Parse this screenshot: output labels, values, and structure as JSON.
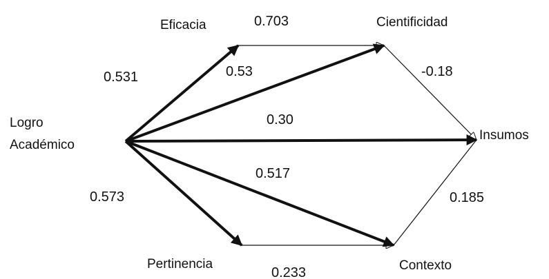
{
  "colors": {
    "background": "#ffffff",
    "ink": "#111111"
  },
  "nodes": {
    "logro": {
      "line1": "Logro",
      "line2": "Académico"
    },
    "eficacia": "Eficacia",
    "cientificidad": "Cientificidad",
    "insumos": "Insumos",
    "pertinencia": "Pertinencia",
    "contexto": "Contexto"
  },
  "paths": [
    {
      "from": "Logro Académico",
      "to": "Eficacia",
      "coefficient": "0.531"
    },
    {
      "from": "Logro Académico",
      "to": "Cientificidad",
      "coefficient": "0.53"
    },
    {
      "from": "Logro Académico",
      "to": "Insumos",
      "coefficient": "0.30"
    },
    {
      "from": "Logro Académico",
      "to": "Contexto",
      "coefficient": "0.517"
    },
    {
      "from": "Logro Académico",
      "to": "Pertinencia",
      "coefficient": "0.573"
    },
    {
      "from": "Eficacia",
      "to": "Cientificidad",
      "coefficient": "0.703"
    },
    {
      "from": "Cientificidad",
      "to": "Insumos",
      "coefficient": "-0.18"
    },
    {
      "from": "Contexto",
      "to": "Insumos",
      "coefficient": "0.185"
    },
    {
      "from": "Pertinencia",
      "to": "Contexto",
      "coefficient": "0.233"
    }
  ]
}
